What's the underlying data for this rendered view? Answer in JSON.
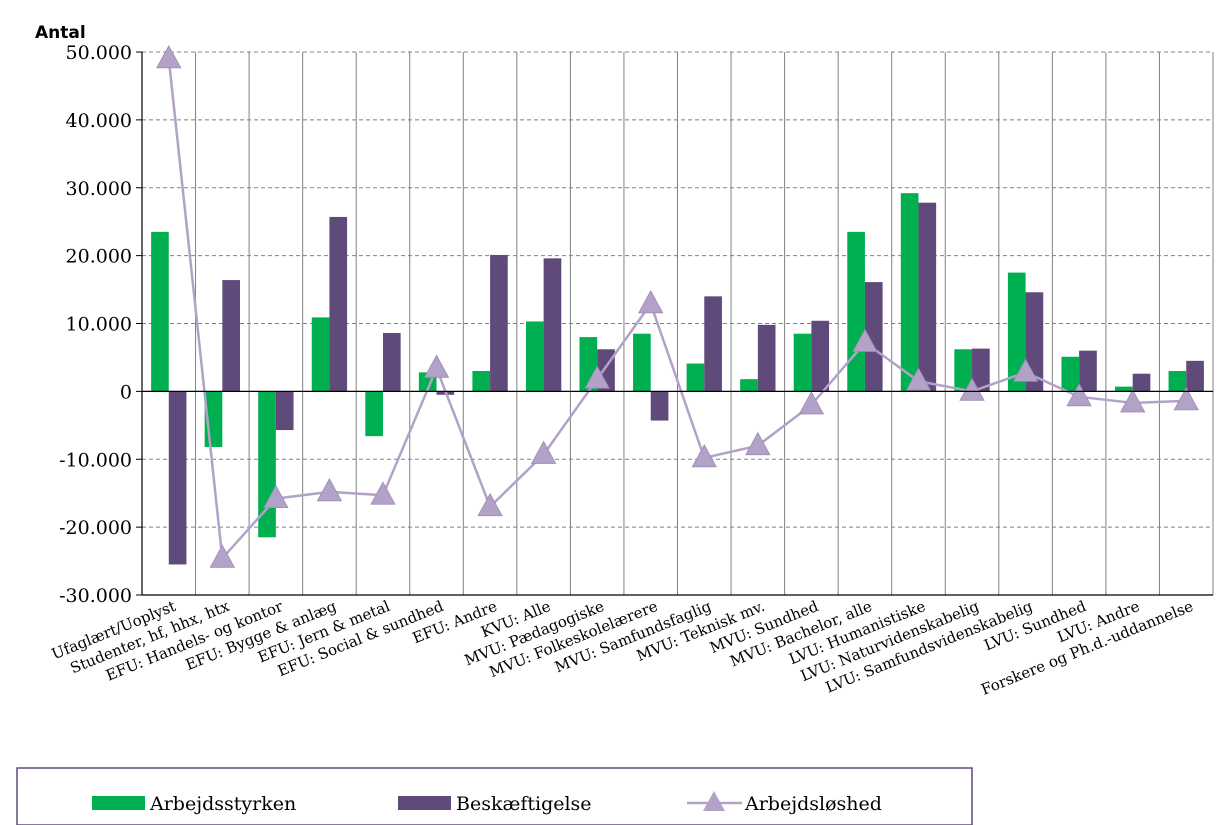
{
  "chart_data": {
    "type": "bar",
    "ylabel": "Antal",
    "ylim": [
      -30000,
      50000
    ],
    "yticks": [
      50000,
      40000,
      30000,
      20000,
      10000,
      0,
      -10000,
      -20000,
      -30000
    ],
    "ytick_labels": [
      "50.000",
      "40.000",
      "30.000",
      "20.000",
      "10.000",
      "0",
      "-10.000",
      "-20.000",
      "-30.000"
    ],
    "grid": true,
    "legend_position": "bottom",
    "categories": [
      "Ufaglært/Uoplyst",
      "Studenter, hf, hhx, htx",
      "EFU: Handels- og kontor",
      "EFU: Bygge & anlæg",
      "EFU: Jern & metal",
      "EFU: Social & sundhed",
      "EFU: Andre",
      "KVU: Alle",
      "MVU: Pædagogiske",
      "MVU: Folkeskolelærere",
      "MVU: Samfundsfaglig",
      "MVU: Teknisk mv.",
      "MVU: Sundhed",
      "MVU: Bachelor, alle",
      "LVU: Humanistiske",
      "LVU: Naturvidenskabelig",
      "LVU: Samfundsvidenskabelig",
      "LVU: Sundhed",
      "LVU: Andre",
      "Forskere og Ph.d.-uddannelse"
    ],
    "series": [
      {
        "name": "Arbejdsstyrken",
        "type": "bar",
        "color": "#00b050",
        "values": [
          23500,
          -8200,
          -21500,
          10900,
          -6600,
          2800,
          3000,
          10300,
          8000,
          8500,
          4100,
          1800,
          8500,
          23500,
          29200,
          6200,
          17500,
          5100,
          700,
          3000
        ]
      },
      {
        "name": "Beskæftigelse",
        "type": "bar",
        "color": "#604a7b",
        "values": [
          -25500,
          16400,
          -5700,
          25700,
          8600,
          -500,
          20100,
          19600,
          6200,
          -4300,
          14000,
          9800,
          10400,
          16100,
          27800,
          6300,
          14600,
          6000,
          2600,
          4500
        ]
      },
      {
        "name": "Arbejdsløshed",
        "type": "line",
        "color": "#b3a2c7",
        "values": [
          49000,
          -24600,
          -15800,
          -14800,
          -15300,
          3400,
          -17000,
          -9300,
          1800,
          12900,
          -9800,
          -8000,
          -2000,
          7200,
          1500,
          0,
          2800,
          -800,
          -1700,
          -1400
        ]
      }
    ]
  }
}
